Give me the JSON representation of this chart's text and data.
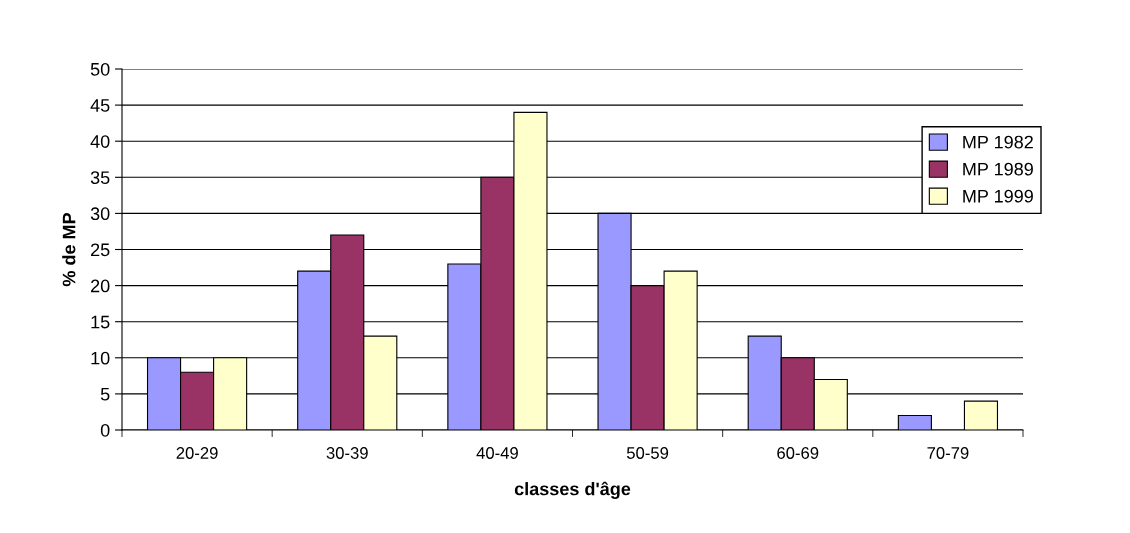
{
  "chart_data": {
    "type": "bar",
    "xlabel": "classes d'âge",
    "ylabel": "% de MP",
    "categories": [
      "20-29",
      "30-39",
      "40-49",
      "50-59",
      "60-69",
      "70-79"
    ],
    "series": [
      {
        "name": "MP 1982",
        "color": "#9999ff",
        "values": [
          10,
          22,
          23,
          30,
          13,
          2
        ]
      },
      {
        "name": "MP 1989",
        "color": "#993366",
        "values": [
          8,
          27,
          35,
          20,
          10,
          null
        ]
      },
      {
        "name": "MP 1999",
        "color": "#ffffcc",
        "values": [
          10,
          13,
          44,
          22,
          7,
          4
        ]
      }
    ],
    "ylim": [
      0,
      50
    ],
    "yticks": [
      0,
      5,
      10,
      15,
      20,
      25,
      30,
      35,
      40,
      45,
      50
    ],
    "grid": "y",
    "legend": "right"
  }
}
